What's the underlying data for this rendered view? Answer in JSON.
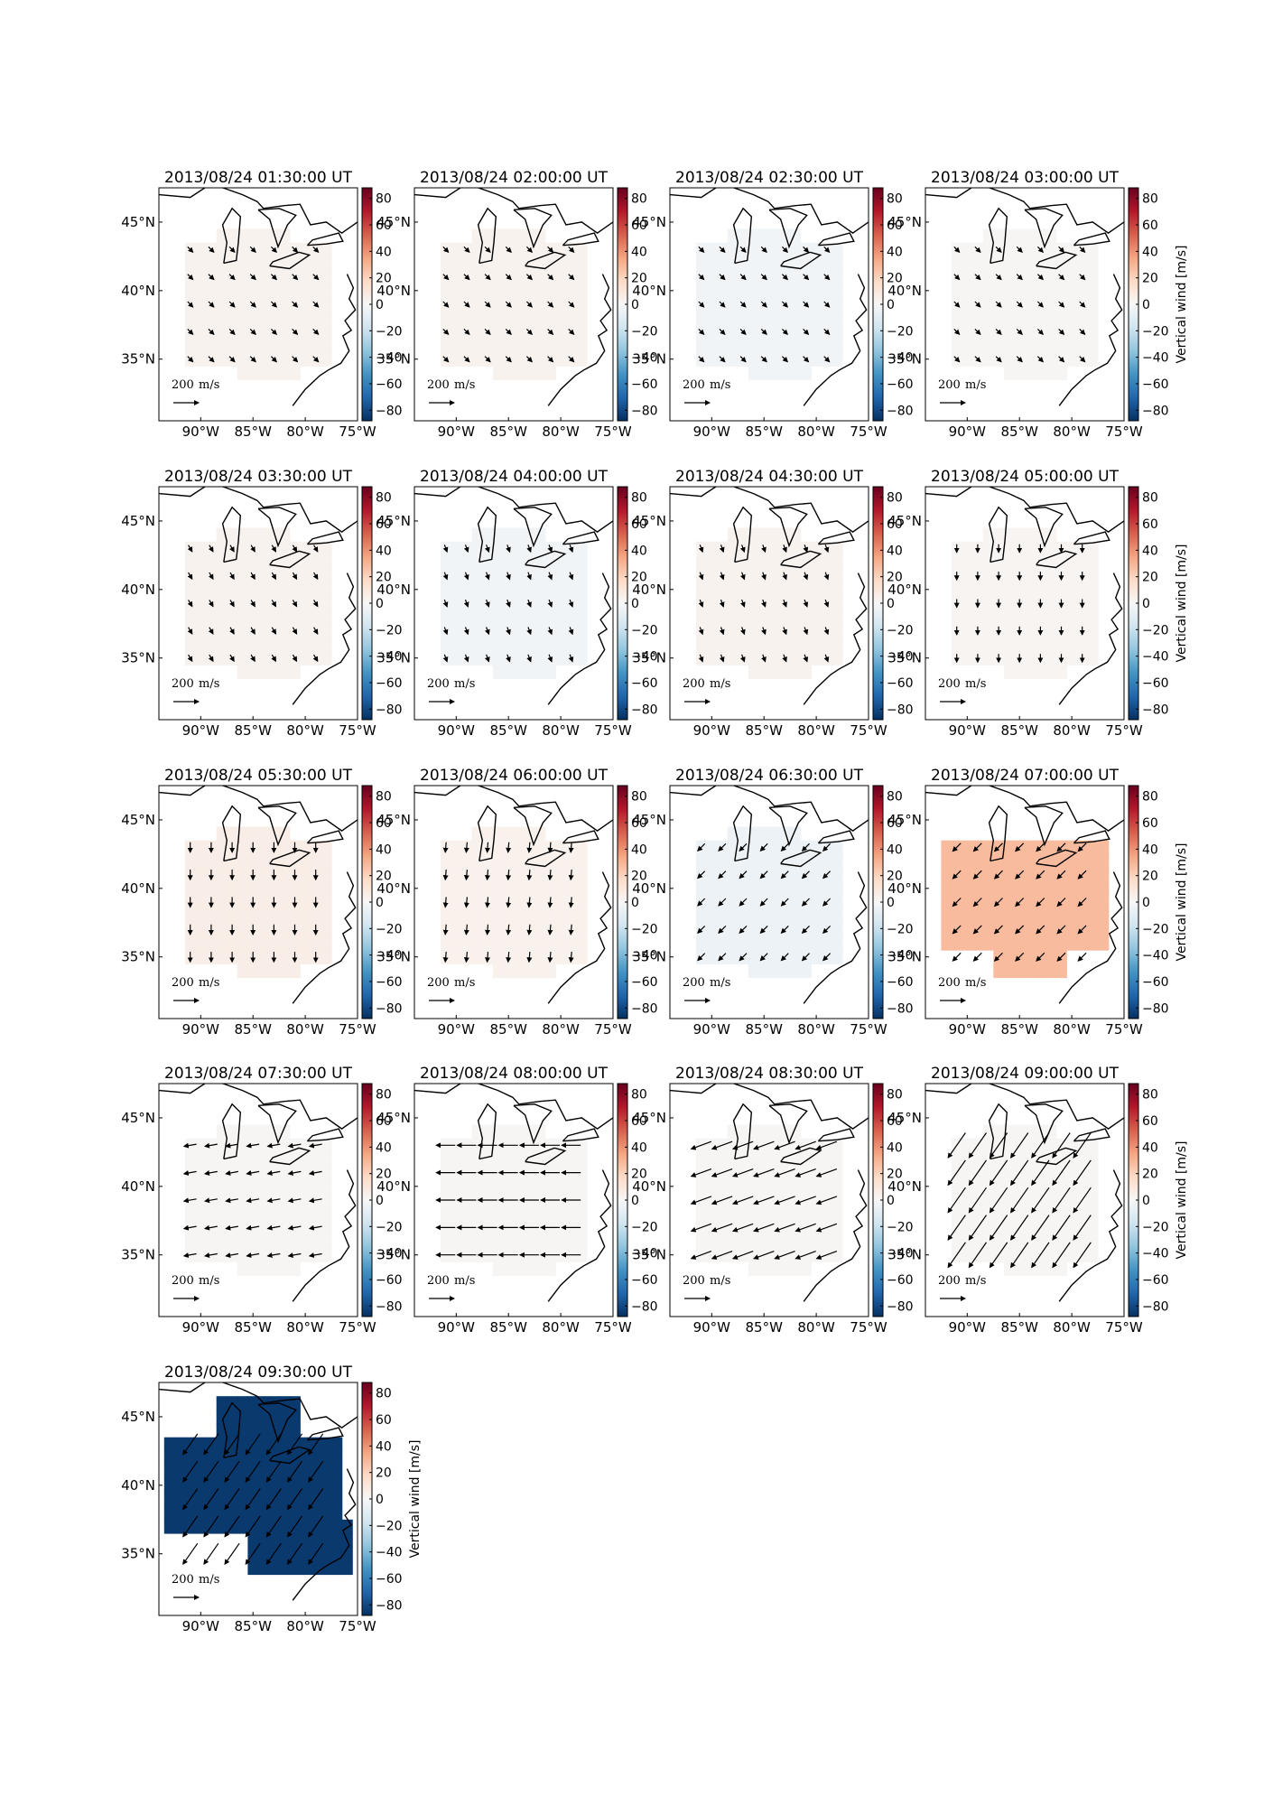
{
  "figure": {
    "colorbar": {
      "ticks": [
        "80",
        "60",
        "40",
        "20",
        "0",
        "−20",
        "−40",
        "−60",
        "−80"
      ],
      "tick_values": [
        80,
        60,
        40,
        20,
        0,
        -20,
        -40,
        -60,
        -80
      ],
      "range": [
        -88,
        88
      ],
      "label": "Vertical wind [m/s]",
      "colormap": "RdBu_r",
      "colors": [
        "#053061",
        "#2166ac",
        "#4393c3",
        "#92c5de",
        "#d1e5f0",
        "#f7f7f7",
        "#fddbc7",
        "#f4a582",
        "#d6604d",
        "#b2182b",
        "#67001f"
      ]
    },
    "axes": {
      "lon_ticks": [
        "90°W",
        "85°W",
        "80°W",
        "75°W"
      ],
      "lon_values": [
        -90,
        -85,
        -80,
        -75
      ],
      "lat_ticks": [
        "45°N",
        "40°N",
        "35°N"
      ],
      "lat_values": [
        45,
        40,
        35
      ],
      "lon_range": [
        -94,
        -75
      ],
      "lat_range": [
        30.5,
        47.5
      ]
    },
    "scale": {
      "value": "200",
      "unit": "m/s"
    },
    "ink_color": "#000000"
  },
  "chart_data": {
    "type": "heatmap",
    "description_values_units": "vertical wind m/s; arrows = horizontal wind direction",
    "panels": [
      {
        "title": "2013/08/24 01:30:00 UT",
        "vertical_wind": 3,
        "wind_dir_deg": 135,
        "wind_speed": 60
      },
      {
        "title": "2013/08/24 02:00:00 UT",
        "vertical_wind": 3,
        "wind_dir_deg": 135,
        "wind_speed": 60
      },
      {
        "title": "2013/08/24 02:30:00 UT",
        "vertical_wind": -3,
        "wind_dir_deg": 135,
        "wind_speed": 60
      },
      {
        "title": "2013/08/24 03:00:00 UT",
        "vertical_wind": 1,
        "wind_dir_deg": 135,
        "wind_speed": 60
      },
      {
        "title": "2013/08/24 03:30:00 UT",
        "vertical_wind": 3,
        "wind_dir_deg": 150,
        "wind_speed": 60
      },
      {
        "title": "2013/08/24 04:00:00 UT",
        "vertical_wind": -3,
        "wind_dir_deg": 160,
        "wind_speed": 60
      },
      {
        "title": "2013/08/24 04:30:00 UT",
        "vertical_wind": 3,
        "wind_dir_deg": 160,
        "wind_speed": 60
      },
      {
        "title": "2013/08/24 05:00:00 UT",
        "vertical_wind": 2,
        "wind_dir_deg": 180,
        "wind_speed": 65
      },
      {
        "title": "2013/08/24 05:30:00 UT",
        "vertical_wind": 6,
        "wind_dir_deg": 180,
        "wind_speed": 80
      },
      {
        "title": "2013/08/24 06:00:00 UT",
        "vertical_wind": 4,
        "wind_dir_deg": 185,
        "wind_speed": 80
      },
      {
        "title": "2013/08/24 06:30:00 UT",
        "vertical_wind": -5,
        "wind_dir_deg": 225,
        "wind_speed": 80
      },
      {
        "title": "2013/08/24 07:00:00 UT",
        "vertical_wind": 28,
        "wind_dir_deg": 225,
        "wind_speed": 90
      },
      {
        "title": "2013/08/24 07:30:00 UT",
        "vertical_wind": 1,
        "wind_dir_deg": 260,
        "wind_speed": 100
      },
      {
        "title": "2013/08/24 08:00:00 UT",
        "vertical_wind": 1,
        "wind_dir_deg": 270,
        "wind_speed": 150
      },
      {
        "title": "2013/08/24 08:30:00 UT",
        "vertical_wind": 1,
        "wind_dir_deg": 250,
        "wind_speed": 170
      },
      {
        "title": "2013/08/24 09:00:00 UT",
        "vertical_wind": 1,
        "wind_dir_deg": 215,
        "wind_speed": 240
      },
      {
        "title": "2013/08/24 09:30:00 UT",
        "vertical_wind": -85,
        "wind_dir_deg": 215,
        "wind_speed": 200
      }
    ]
  }
}
